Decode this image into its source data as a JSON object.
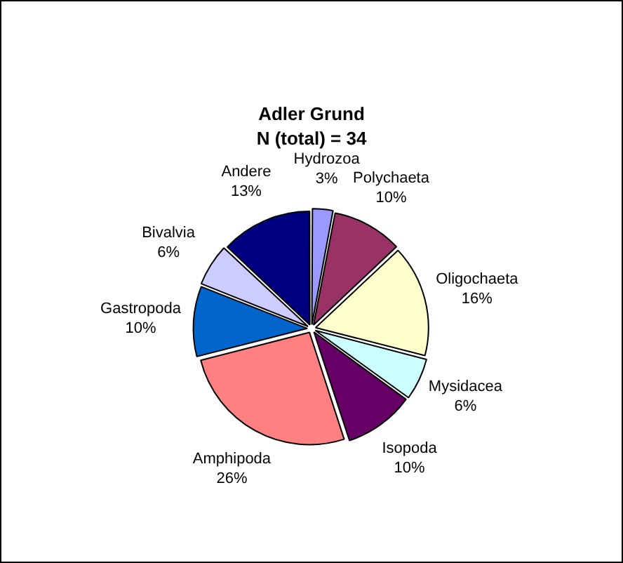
{
  "chart_data": {
    "type": "pie",
    "title": "Adler Grund",
    "subtitle": "N (total) = 34",
    "categories": [
      "Hydrozoa",
      "Polychaeta",
      "Oligochaeta",
      "Mysidacea",
      "Isopoda",
      "Amphipoda",
      "Gastropoda",
      "Bivalvia",
      "Andere"
    ],
    "values": [
      3,
      10,
      16,
      6,
      10,
      26,
      10,
      6,
      13
    ],
    "value_labels": [
      "3%",
      "10%",
      "16%",
      "6%",
      "10%",
      "26%",
      "10%",
      "6%",
      "13%"
    ],
    "colors": [
      "#9999ff",
      "#993366",
      "#ffffcc",
      "#ccffff",
      "#660066",
      "#ff8080",
      "#0066cc",
      "#ccccff",
      "#000080"
    ],
    "legend": false
  }
}
